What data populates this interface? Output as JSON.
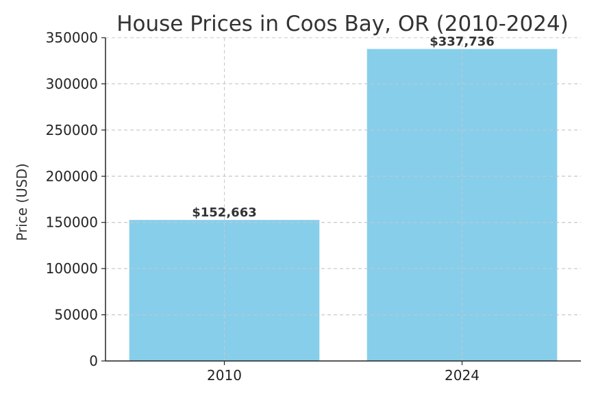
{
  "chart_data": {
    "type": "bar",
    "title": "House Prices in Coos Bay, OR (2010-2024)",
    "xlabel": "",
    "ylabel": "Price (USD)",
    "categories": [
      "2010",
      "2024"
    ],
    "values": [
      152663,
      337736
    ],
    "data_labels": [
      "$152,663",
      "$337,736"
    ],
    "ylim": [
      0,
      350000
    ],
    "yticks": [
      0,
      50000,
      100000,
      150000,
      200000,
      250000,
      300000,
      350000
    ],
    "ytick_labels": [
      "0",
      "50000",
      "100000",
      "150000",
      "200000",
      "250000",
      "300000",
      "350000"
    ],
    "grid": true,
    "legend": false,
    "colors": {
      "bar": "#87ceeb",
      "text": "#333333",
      "grid": "#c8c8c8",
      "axis": "#222222"
    }
  }
}
